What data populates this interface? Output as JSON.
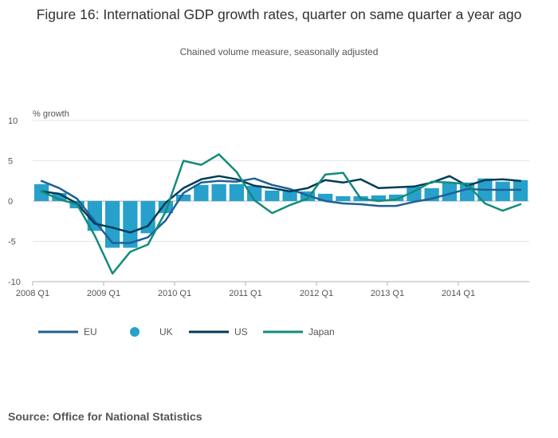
{
  "title": "Figure 16: International GDP growth rates, quarter on same quarter a year ago",
  "subtitle": "Chained volume measure, seasonally adjusted",
  "source": "Source: Office for National Statistics",
  "chart_data": {
    "type": "bar+line",
    "ylabel": "% growth",
    "ylim": [
      -10,
      10
    ],
    "yticks": [
      10,
      5,
      0,
      -5,
      -10
    ],
    "ytick_labels": [
      "10",
      "5",
      "0",
      "-5",
      "-10"
    ],
    "categories": [
      "2008 Q1",
      "2008 Q2",
      "2008 Q3",
      "2008 Q4",
      "2009 Q1",
      "2009 Q2",
      "2009 Q3",
      "2009 Q4",
      "2010 Q1",
      "2010 Q2",
      "2010 Q3",
      "2010 Q4",
      "2011 Q1",
      "2011 Q2",
      "2011 Q3",
      "2011 Q4",
      "2012 Q1",
      "2012 Q2",
      "2012 Q3",
      "2012 Q4",
      "2013 Q1",
      "2013 Q2",
      "2013 Q3",
      "2013 Q4",
      "2014 Q1",
      "2014 Q2",
      "2014 Q3",
      "2014 Q4"
    ],
    "xtick_labels": [
      "2008 Q1",
      "2009 Q1",
      "2010 Q1",
      "2011 Q1",
      "2012 Q1",
      "2013 Q1",
      "2014 Q1"
    ],
    "legend_position": "bottom",
    "series": [
      {
        "name": "EU",
        "kind": "line",
        "color": "#206095",
        "values": [
          2.5,
          1.6,
          0.3,
          -2.5,
          -5.2,
          -5.2,
          -4.5,
          -2.4,
          1.0,
          2.3,
          2.5,
          2.4,
          2.8,
          2.0,
          1.5,
          0.7,
          0.0,
          -0.3,
          -0.4,
          -0.6,
          -0.6,
          -0.1,
          0.3,
          0.9,
          1.5,
          1.4,
          1.4,
          1.4
        ]
      },
      {
        "name": "UK",
        "kind": "bar",
        "color": "#27a0cc",
        "values": [
          2.1,
          1.0,
          -0.9,
          -3.7,
          -5.8,
          -5.8,
          -4.0,
          -1.5,
          0.8,
          2.0,
          2.1,
          2.1,
          1.9,
          1.3,
          1.3,
          1.2,
          0.9,
          0.6,
          0.6,
          0.7,
          0.8,
          1.8,
          1.6,
          2.3,
          2.3,
          2.8,
          2.4,
          2.6
        ]
      },
      {
        "name": "US",
        "kind": "line",
        "color": "#003c57",
        "values": [
          1.2,
          0.9,
          -0.3,
          -2.8,
          -3.3,
          -3.9,
          -3.1,
          -0.2,
          1.6,
          2.7,
          3.1,
          2.7,
          1.9,
          1.6,
          1.2,
          1.6,
          2.6,
          2.3,
          2.7,
          1.6,
          1.7,
          1.8,
          2.3,
          3.1,
          1.9,
          2.6,
          2.7,
          2.5
        ]
      },
      {
        "name": "Japan",
        "kind": "line",
        "color": "#118c7b",
        "values": [
          1.2,
          0.2,
          -0.4,
          -4.3,
          -9.0,
          -6.3,
          -5.4,
          -1.3,
          5.0,
          4.5,
          5.8,
          3.6,
          0.1,
          -1.5,
          -0.5,
          0.3,
          3.3,
          3.5,
          0.3,
          0.0,
          0.2,
          1.2,
          2.4,
          2.3,
          2.1,
          -0.3,
          -1.2,
          -0.4
        ]
      }
    ]
  }
}
